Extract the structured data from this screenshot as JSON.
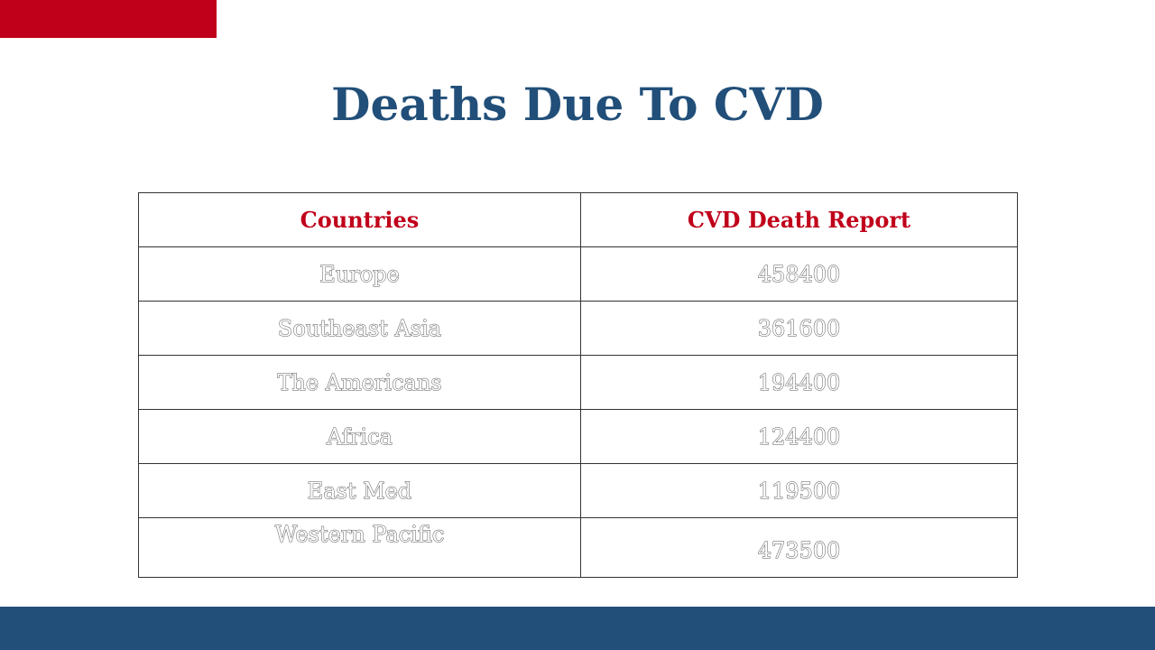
{
  "slide": {
    "title": "Deaths Due To CVD"
  },
  "table": {
    "headers": [
      "Countries",
      "CVD Death Report"
    ],
    "rows": [
      {
        "country": "Europe",
        "value": "458400"
      },
      {
        "country": "Southeast Asia",
        "value": "361600"
      },
      {
        "country": "The Americans",
        "value": "194400"
      },
      {
        "country": "Africa",
        "value": "124400"
      },
      {
        "country": "East Med",
        "value": "119500"
      },
      {
        "country": "Western Pacific",
        "value": "473500"
      }
    ]
  },
  "colors": {
    "accent_red": "#c0001a",
    "primary_blue": "#214f79",
    "border": "#333333"
  }
}
